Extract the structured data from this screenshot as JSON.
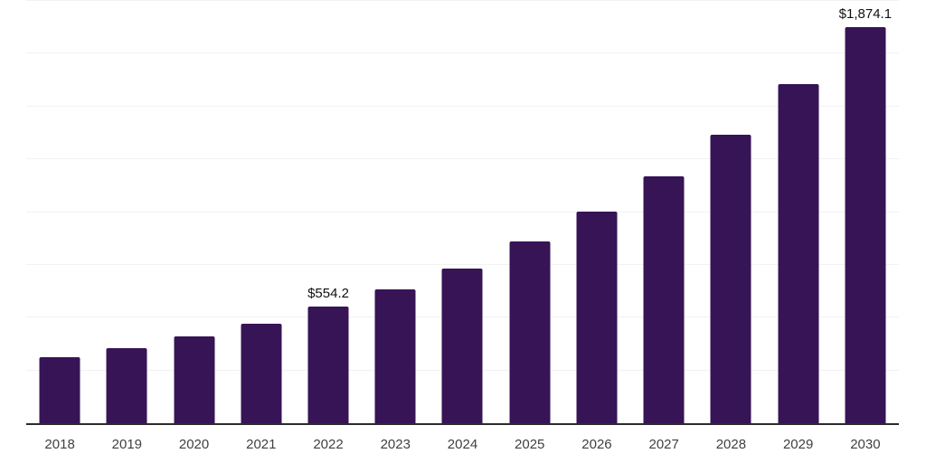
{
  "chart_data": {
    "type": "bar",
    "categories": [
      "2018",
      "2019",
      "2020",
      "2021",
      "2022",
      "2023",
      "2024",
      "2025",
      "2026",
      "2027",
      "2028",
      "2029",
      "2030"
    ],
    "values": [
      313,
      357,
      410,
      472,
      554.2,
      634,
      732,
      861,
      1002,
      1169,
      1366,
      1606,
      1874.1
    ],
    "value_labels": {
      "2022": "$554.2",
      "2030": "$1,874.1"
    },
    "title": "",
    "xlabel": "",
    "ylabel": "",
    "ylim": [
      0,
      2000
    ],
    "gridline_step": 250,
    "grid": "horizontal-only",
    "y_tick_labels_visible": false,
    "legend_position": "none",
    "colors": {
      "bar_fill": "#371456",
      "gridline": "#f2f2f2",
      "axis_line": "#2b2b2b",
      "x_label_text": "#404040",
      "value_label_text": "#111111",
      "background": "#ffffff"
    }
  }
}
